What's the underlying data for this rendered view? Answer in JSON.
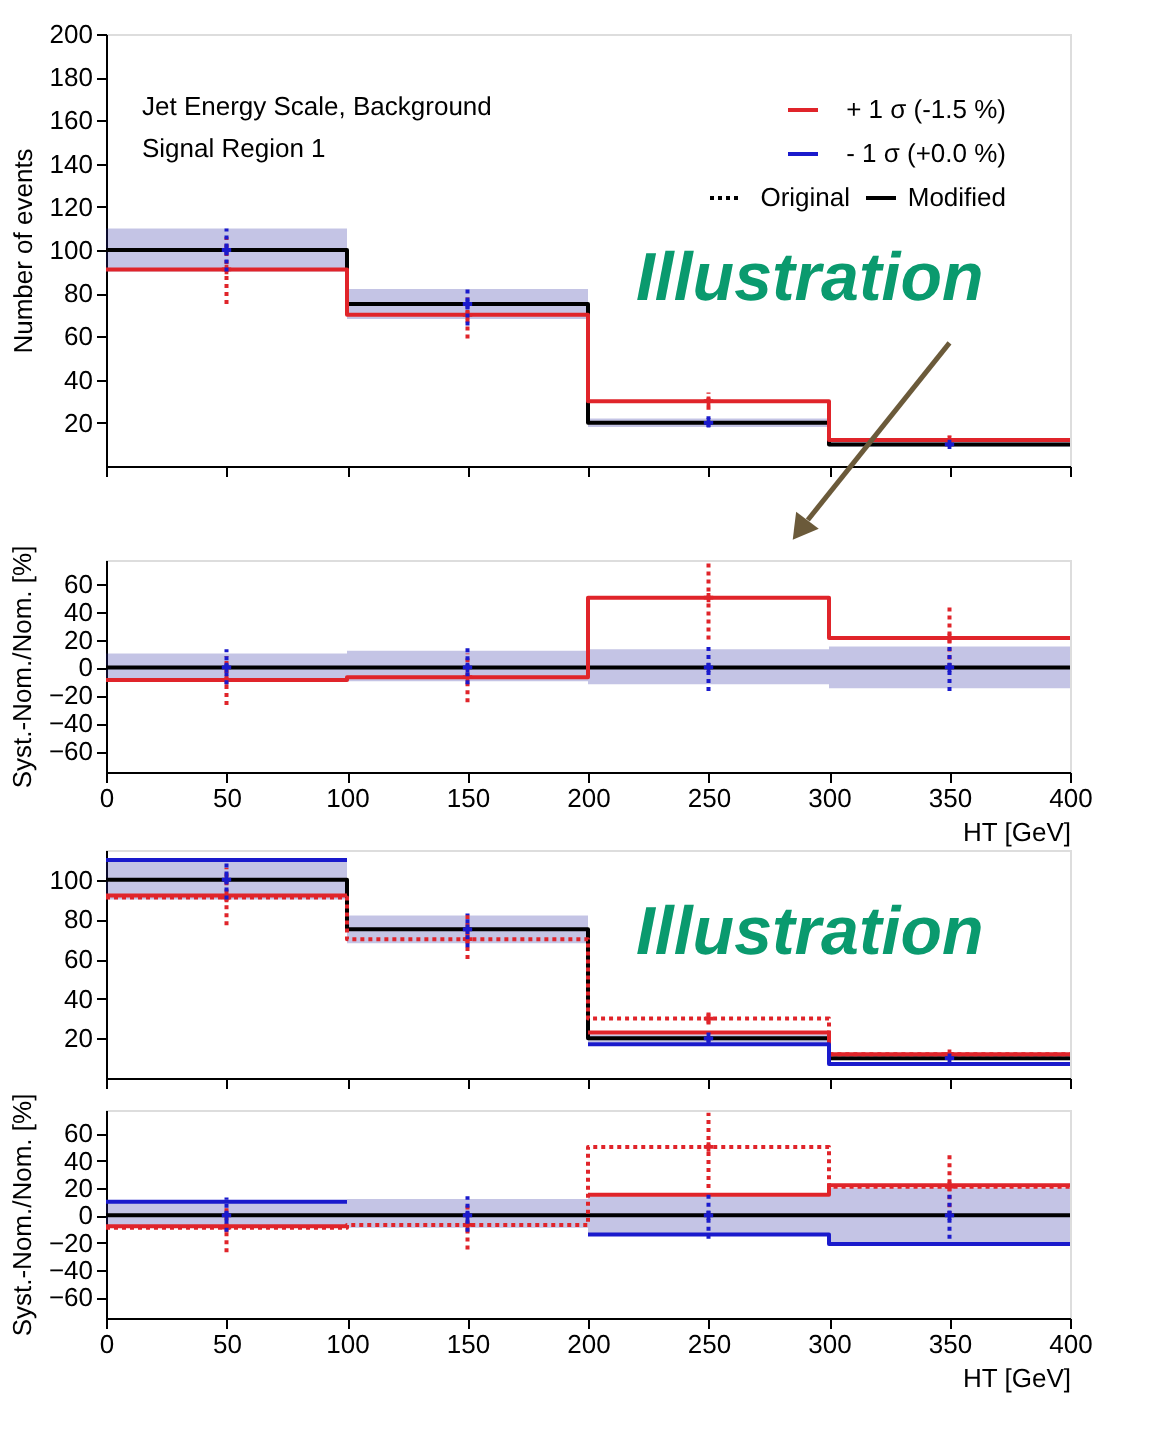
{
  "chart_data": [
    {
      "type": "step",
      "x": [
        0,
        100,
        200,
        300
      ],
      "xlim": [
        0,
        400
      ],
      "xticks": [
        0,
        50,
        100,
        150,
        200,
        250,
        300,
        350,
        400
      ],
      "ylim": [
        0,
        200
      ],
      "yticks": [
        20,
        40,
        60,
        80,
        100,
        120,
        140,
        160,
        180,
        200
      ],
      "tick_labels": "y",
      "ylabel": "Number of events",
      "legend": "top right",
      "grid": false,
      "annotations": [
        "Jet Energy Scale, Background",
        "Signal Region 1",
        "Illustration"
      ],
      "series": [
        {
          "color": "#000000",
          "values": [
            100,
            75,
            20,
            10
          ],
          "lower": [
            90,
            68,
            18,
            9
          ],
          "upper": [
            110,
            82,
            22,
            11
          ]
        },
        {
          "name": "+ 1 σ (-1.5 %)",
          "color": "#e0242a",
          "values": [
            91,
            70,
            30,
            12
          ]
        },
        {
          "name": "- 1 σ (+0.0 %)",
          "color": "#1a1acc",
          "values": [
            null,
            null,
            null,
            null
          ]
        },
        {
          "name": "Original",
          "color": "#000000",
          "line_style": "dotted",
          "values": [
            null,
            null,
            null,
            null
          ]
        },
        {
          "name": "Modified",
          "color": "#000000",
          "line_style": "solid",
          "values": [
            null,
            null,
            null,
            null
          ]
        },
        {
          "type": "scatter",
          "marker": "cross",
          "line_style": "dotted",
          "color": "#e0242a",
          "x": [
            50,
            150,
            250,
            350
          ],
          "values": [
            91,
            70,
            30,
            12
          ],
          "errors": [
            [
              75,
              106
            ],
            [
              59,
              78
            ],
            [
              26,
              34
            ],
            [
              10,
              14
            ]
          ]
        },
        {
          "type": "scatter",
          "marker": "cross",
          "line_style": "dotted",
          "color": "#1a1acc",
          "x": [
            50,
            150,
            250,
            350
          ],
          "values": [
            100,
            75,
            20,
            10
          ],
          "errors": [
            [
              90,
              110
            ],
            [
              65,
              83
            ],
            [
              18,
              23
            ],
            [
              9,
              11
            ]
          ]
        }
      ]
    },
    {
      "type": "step",
      "x": [
        0,
        100,
        200,
        300
      ],
      "xlim": [
        0,
        400
      ],
      "xticks": [
        0,
        50,
        100,
        150,
        200,
        250,
        300,
        350,
        400
      ],
      "ylim": [
        -75,
        77
      ],
      "yticks": [
        -60,
        -40,
        -20,
        0,
        20,
        40,
        60
      ],
      "xlabel": "HT [GeV]",
      "ylabel": "Syst.-Nom./Nom. [%]",
      "grid": false,
      "series": [
        {
          "color": "#000000",
          "values": [
            0,
            0,
            0,
            0
          ],
          "lower": [
            -10,
            -10,
            -12,
            -15
          ],
          "upper": [
            10,
            12,
            13,
            15
          ]
        },
        {
          "color": "#e0242a",
          "values": [
            -9,
            -7,
            50,
            21
          ]
        },
        {
          "type": "scatter",
          "marker": "cross",
          "line_style": "dotted",
          "color": "#e0242a",
          "x": [
            50,
            150,
            250,
            350
          ],
          "values": [
            -9,
            -7,
            50,
            21
          ],
          "errors": [
            [
              -27,
              8
            ],
            [
              -25,
              10
            ],
            [
              20,
              75
            ],
            [
              0,
              45
            ]
          ]
        },
        {
          "type": "scatter",
          "marker": "cross",
          "line_style": "dotted",
          "color": "#1a1acc",
          "x": [
            50,
            150,
            250,
            350
          ],
          "values": [
            0,
            0,
            0,
            0
          ],
          "errors": [
            [
              -12,
              13
            ],
            [
              -12,
              14
            ],
            [
              -17,
              17
            ],
            [
              -17,
              17
            ]
          ]
        }
      ]
    },
    {
      "type": "step",
      "x": [
        0,
        100,
        200,
        300
      ],
      "xlim": [
        0,
        400
      ],
      "xticks": [
        0,
        50,
        100,
        150,
        200,
        250,
        300,
        350,
        400
      ],
      "ylim": [
        0,
        115
      ],
      "yticks": [
        20,
        40,
        60,
        80,
        100
      ],
      "tick_labels": "y",
      "grid": false,
      "annotations": [
        "Illustration"
      ],
      "series": [
        {
          "color": "#000000",
          "values": [
            100,
            75,
            20,
            10
          ],
          "lower": [
            90,
            68,
            18,
            9
          ],
          "upper": [
            110,
            82,
            22,
            11
          ]
        },
        {
          "color": "#e0242a",
          "line_style": "dotted",
          "values": [
            91,
            70,
            30,
            12
          ]
        },
        {
          "color": "#e0242a",
          "values": [
            92,
            null,
            23,
            12
          ]
        },
        {
          "color": "#1a1acc",
          "values": [
            110,
            null,
            17,
            7
          ]
        },
        {
          "type": "scatter",
          "marker": "cross",
          "line_style": "dotted",
          "color": "#e0242a",
          "x": [
            50,
            150,
            250,
            350
          ],
          "values": [
            91,
            70,
            30,
            12
          ],
          "errors": [
            [
              77,
              106
            ],
            [
              60,
              83
            ],
            [
              27,
              34
            ],
            [
              10,
              14
            ]
          ]
        },
        {
          "type": "scatter",
          "marker": "cross",
          "line_style": "dotted",
          "color": "#1a1acc",
          "x": [
            50,
            150,
            250,
            350
          ],
          "values": [
            100,
            75,
            20,
            10
          ],
          "errors": [
            [
              90,
              110
            ],
            [
              66,
              83
            ],
            [
              18,
              23
            ],
            [
              9,
              11
            ]
          ]
        }
      ]
    },
    {
      "type": "step",
      "x": [
        0,
        100,
        200,
        300
      ],
      "xlim": [
        0,
        400
      ],
      "xticks": [
        0,
        50,
        100,
        150,
        200,
        250,
        300,
        350,
        400
      ],
      "ylim": [
        -75,
        77
      ],
      "yticks": [
        -60,
        -40,
        -20,
        0,
        20,
        40,
        60
      ],
      "xlabel": "HT [GeV]",
      "ylabel": "Syst.-Nom./Nom. [%]",
      "grid": false,
      "series": [
        {
          "color": "#000000",
          "values": [
            0,
            0,
            0,
            0
          ],
          "lower": [
            -9,
            -9,
            -13,
            -20
          ],
          "upper": [
            9,
            12,
            14,
            20
          ]
        },
        {
          "color": "#e0242a",
          "line_style": "dotted",
          "values": [
            -9,
            -7,
            50,
            21
          ]
        },
        {
          "color": "#e0242a",
          "values": [
            -8,
            null,
            15,
            22
          ]
        },
        {
          "color": "#1a1acc",
          "values": [
            10,
            null,
            -14,
            -21
          ]
        },
        {
          "type": "scatter",
          "marker": "cross",
          "line_style": "dotted",
          "color": "#e0242a",
          "x": [
            50,
            150,
            250,
            350
          ],
          "values": [
            -9,
            -7,
            50,
            21
          ],
          "errors": [
            [
              -27,
              8
            ],
            [
              -25,
              10
            ],
            [
              20,
              75
            ],
            [
              0,
              45
            ]
          ]
        },
        {
          "type": "scatter",
          "marker": "cross",
          "line_style": "dotted",
          "color": "#1a1acc",
          "x": [
            50,
            150,
            250,
            350
          ],
          "values": [
            0,
            0,
            0,
            0
          ],
          "errors": [
            [
              -12,
              13
            ],
            [
              -12,
              14
            ],
            [
              -17,
              17
            ],
            [
              -17,
              17
            ]
          ]
        }
      ]
    }
  ]
}
